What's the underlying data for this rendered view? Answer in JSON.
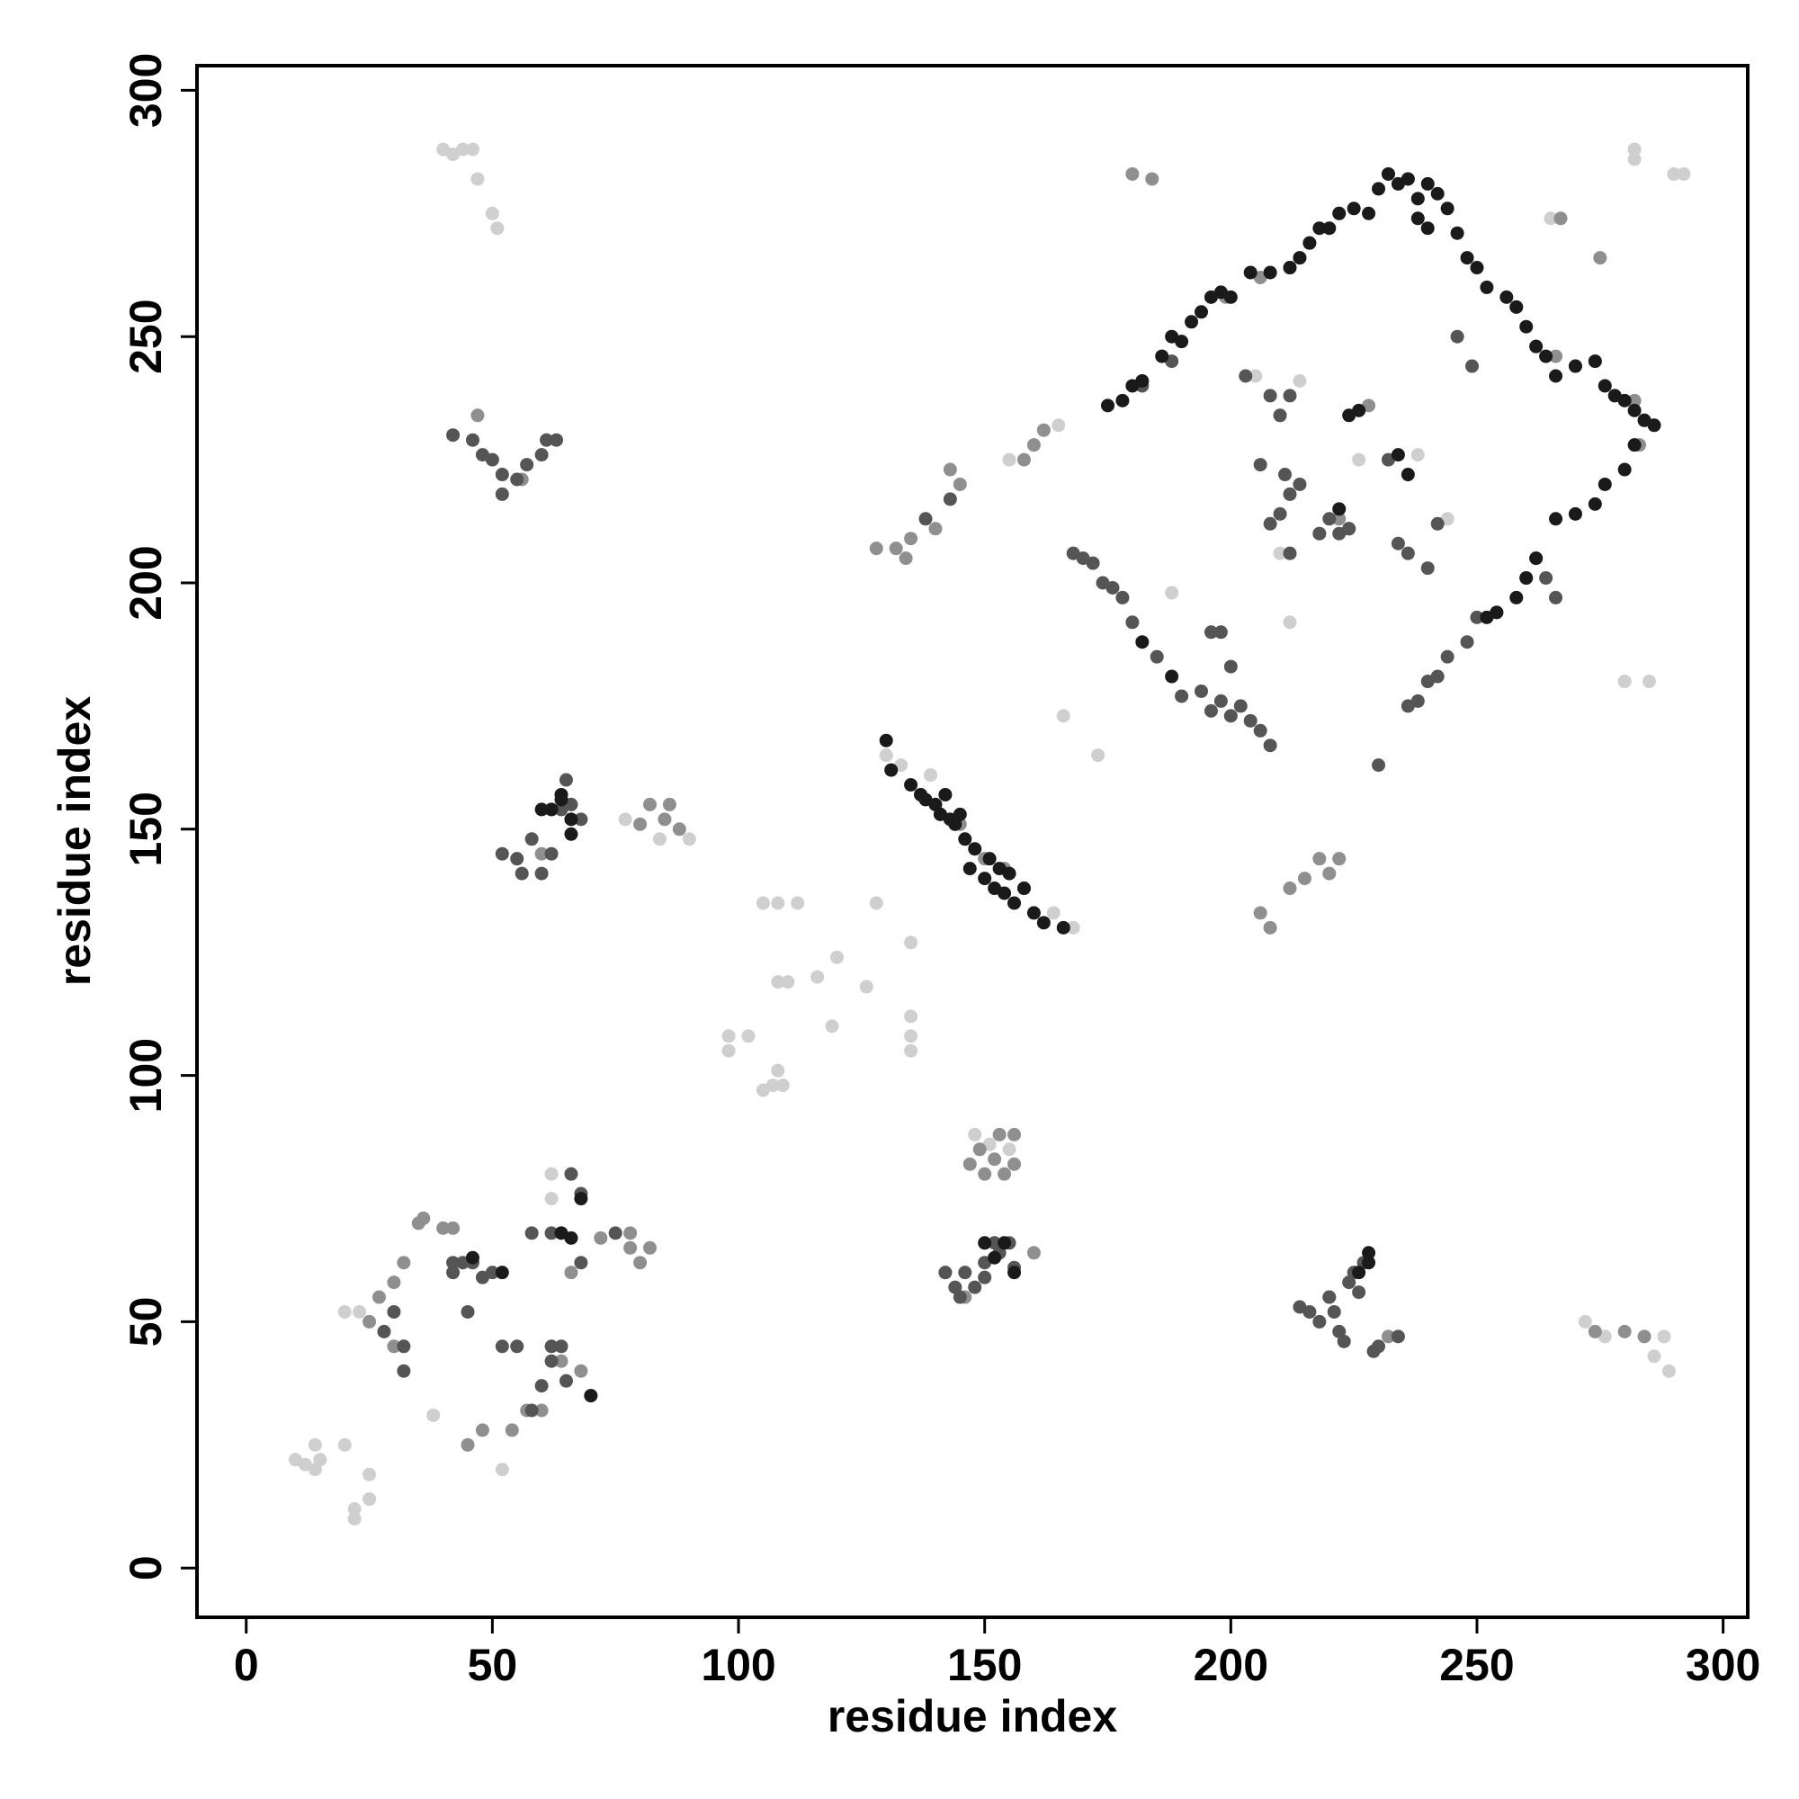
{
  "chart_data": {
    "type": "scatter",
    "xlabel": "residue index",
    "ylabel": "residue index",
    "xlim": [
      -10,
      305
    ],
    "ylim": [
      -10,
      305
    ],
    "xticks": [
      0,
      50,
      100,
      150,
      200,
      250,
      300
    ],
    "yticks": [
      0,
      50,
      100,
      150,
      200,
      250,
      300
    ],
    "series": [
      {
        "color": "#cfcfcf",
        "x": [
          10,
          12,
          14,
          14,
          15,
          20,
          22,
          22,
          25,
          25,
          40,
          42,
          44,
          46,
          47,
          50,
          51,
          98,
          98,
          102,
          105,
          107,
          108,
          109,
          105,
          108,
          112,
          108,
          110,
          116,
          119,
          120,
          126,
          128,
          135,
          135,
          135,
          135,
          272,
          276,
          282,
          286,
          288,
          289,
          265,
          282,
          290,
          292,
          280,
          285,
          173,
          166,
          20,
          23,
          38,
          52,
          62,
          62,
          77,
          84,
          90,
          130,
          133,
          139,
          148,
          151,
          155,
          164,
          168,
          165,
          162,
          200,
          214,
          205,
          210,
          212,
          226,
          244,
          238,
          188,
          210,
          155
        ],
        "y": [
          22,
          21,
          20,
          25,
          22,
          25,
          12,
          10,
          14,
          19,
          288,
          287,
          288,
          288,
          282,
          275,
          272,
          108,
          105,
          108,
          97,
          98,
          101,
          98,
          135,
          135,
          135,
          119,
          119,
          120,
          110,
          124,
          118,
          135,
          127,
          112,
          108,
          105,
          50,
          47,
          288,
          43,
          47,
          40,
          274,
          286,
          283,
          283,
          180,
          180,
          165,
          173,
          52,
          52,
          31,
          20,
          80,
          75,
          152,
          148,
          148,
          165,
          163,
          161,
          88,
          86,
          85,
          133,
          130,
          232,
          231,
          173,
          241,
          242,
          234,
          192,
          225,
          213,
          226,
          198,
          206,
          225
        ]
      },
      {
        "color": "#8f8f8f",
        "x": [
          25,
          27,
          30,
          30,
          32,
          35,
          36,
          40,
          42,
          45,
          48,
          54,
          57,
          60,
          64,
          68,
          70,
          66,
          72,
          78,
          80,
          82,
          78,
          80,
          82,
          85,
          86,
          88,
          147,
          149,
          150,
          152,
          153,
          154,
          156,
          156,
          128,
          132,
          134,
          135,
          140,
          143,
          145,
          158,
          160,
          162,
          206,
          208,
          212,
          215,
          218,
          220,
          222,
          47,
          56,
          60,
          62,
          137,
          141,
          145,
          150,
          154,
          158,
          160,
          199,
          204,
          206,
          208,
          212,
          214,
          216,
          222,
          232,
          236,
          258,
          262,
          266,
          270,
          274,
          282,
          284,
          267,
          275,
          283,
          274,
          280,
          284,
          180,
          184,
          218,
          222,
          228,
          220,
          232,
          142,
          146
        ],
        "y": [
          50,
          55,
          58,
          45,
          62,
          70,
          71,
          69,
          69,
          25,
          28,
          28,
          32,
          32,
          42,
          40,
          35,
          60,
          67,
          68,
          62,
          65,
          65,
          151,
          155,
          152,
          155,
          150,
          82,
          85,
          80,
          83,
          88,
          80,
          88,
          82,
          207,
          207,
          205,
          209,
          211,
          223,
          220,
          225,
          228,
          231,
          133,
          130,
          138,
          140,
          144,
          141,
          144,
          234,
          221,
          145,
          154,
          157,
          153,
          151,
          144,
          142,
          138,
          64,
          258,
          263,
          262,
          263,
          264,
          266,
          269,
          275,
          283,
          282,
          256,
          248,
          246,
          244,
          245,
          237,
          233,
          274,
          266,
          228,
          48,
          48,
          47,
          283,
          282,
          210,
          213,
          236,
          55,
          47,
          60,
          55
        ]
      },
      {
        "color": "#555555",
        "x": [
          28,
          30,
          32,
          32,
          42,
          44,
          46,
          42,
          48,
          45,
          50,
          52,
          55,
          58,
          60,
          62,
          62,
          64,
          65,
          58,
          62,
          66,
          68,
          68,
          75,
          42,
          46,
          48,
          50,
          52,
          52,
          55,
          57,
          60,
          61,
          63,
          52,
          55,
          56,
          58,
          60,
          62,
          64,
          65,
          66,
          68,
          142,
          144,
          145,
          146,
          148,
          150,
          150,
          152,
          153,
          155,
          156,
          214,
          216,
          218,
          220,
          221,
          222,
          223,
          224,
          225,
          226,
          227,
          229,
          230,
          234,
          168,
          170,
          172,
          174,
          176,
          178,
          180,
          185,
          190,
          194,
          196,
          198,
          200,
          202,
          204,
          206,
          208,
          203,
          208,
          210,
          212,
          211,
          212,
          214,
          208,
          210,
          212,
          218,
          220,
          222,
          224,
          234,
          236,
          240,
          242,
          246,
          249,
          196,
          198,
          200,
          138,
          143,
          182,
          188,
          262,
          264,
          266,
          260,
          254,
          250,
          248,
          244,
          242,
          240,
          238,
          236,
          206,
          224,
          232,
          230
        ],
        "y": [
          48,
          52,
          45,
          40,
          62,
          62,
          62,
          60,
          59,
          52,
          60,
          45,
          45,
          32,
          37,
          45,
          42,
          45,
          38,
          68,
          68,
          80,
          76,
          62,
          68,
          230,
          229,
          226,
          225,
          222,
          218,
          221,
          224,
          226,
          229,
          229,
          145,
          144,
          141,
          148,
          141,
          145,
          154,
          160,
          155,
          152,
          60,
          57,
          55,
          60,
          57,
          59,
          62,
          66,
          64,
          66,
          61,
          53,
          52,
          50,
          55,
          52,
          48,
          46,
          58,
          60,
          56,
          62,
          44,
          45,
          47,
          206,
          205,
          204,
          200,
          199,
          197,
          192,
          185,
          177,
          178,
          174,
          176,
          173,
          175,
          172,
          170,
          167,
          242,
          238,
          234,
          238,
          222,
          218,
          220,
          212,
          214,
          206,
          210,
          213,
          210,
          211,
          208,
          206,
          203,
          212,
          250,
          244,
          190,
          190,
          183,
          213,
          217,
          240,
          245,
          205,
          201,
          197,
          201,
          194,
          193,
          188,
          185,
          181,
          180,
          176,
          175,
          224,
          211,
          225,
          163
        ]
      },
      {
        "color": "#1a1a1a",
        "x": [
          60,
          62,
          64,
          66,
          64,
          66,
          175,
          178,
          180,
          182,
          186,
          188,
          190,
          192,
          194,
          196,
          198,
          200,
          204,
          208,
          212,
          214,
          216,
          218,
          220,
          222,
          225,
          228,
          230,
          232,
          234,
          236,
          238,
          240,
          242,
          244,
          246,
          248,
          250,
          252,
          256,
          258,
          260,
          262,
          264,
          266,
          270,
          274,
          276,
          278,
          280,
          282,
          284,
          286,
          282,
          280,
          276,
          274,
          270,
          266,
          262,
          260,
          258,
          254,
          252,
          130,
          131,
          135,
          137,
          138,
          140,
          141,
          142,
          143,
          144,
          145,
          146,
          147,
          148,
          150,
          151,
          152,
          153,
          154,
          155,
          156,
          158,
          160,
          162,
          166,
          182,
          188,
          222,
          224,
          226,
          234,
          236,
          228,
          238,
          240,
          64,
          66,
          68,
          70,
          228,
          226,
          150,
          152,
          154,
          156,
          52,
          46
        ],
        "y": [
          154,
          154,
          157,
          152,
          156,
          149,
          236,
          237,
          240,
          241,
          246,
          250,
          249,
          253,
          255,
          258,
          259,
          258,
          263,
          263,
          264,
          266,
          269,
          272,
          272,
          275,
          276,
          275,
          280,
          283,
          281,
          282,
          278,
          281,
          279,
          276,
          271,
          266,
          264,
          260,
          258,
          256,
          252,
          248,
          246,
          242,
          244,
          245,
          240,
          238,
          237,
          235,
          233,
          232,
          228,
          223,
          220,
          216,
          214,
          213,
          205,
          201,
          197,
          194,
          193,
          168,
          162,
          159,
          157,
          156,
          155,
          153,
          157,
          152,
          151,
          153,
          148,
          142,
          146,
          140,
          144,
          138,
          142,
          137,
          141,
          135,
          138,
          133,
          131,
          130,
          188,
          181,
          215,
          234,
          235,
          226,
          222,
          62,
          274,
          272,
          68,
          67,
          75,
          35,
          64,
          60,
          66,
          63,
          66,
          60,
          60,
          63
        ]
      }
    ]
  }
}
